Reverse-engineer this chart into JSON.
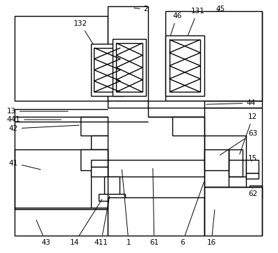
{
  "bg_color": "#ffffff",
  "line_color": "#000000",
  "lw": 1.0,
  "figsize": [
    4.0,
    3.64
  ],
  "dpi": 100,
  "fs": 7.5
}
